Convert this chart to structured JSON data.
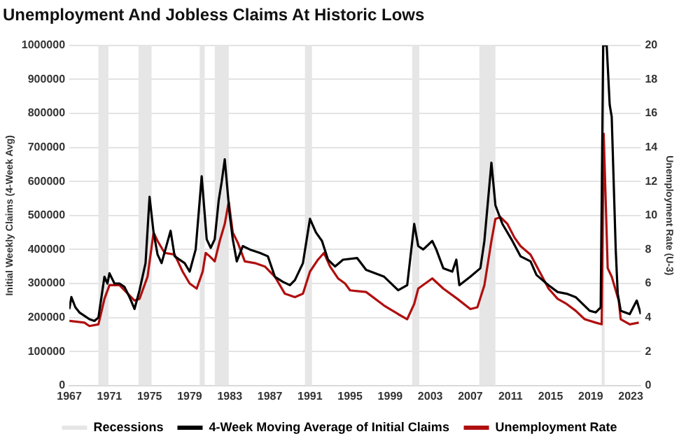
{
  "chart_data": {
    "type": "line",
    "title": "Unemployment And Jobless Claims At Historic Lows",
    "ylabel": "Initial Weekly Claims (4-Week Avg)",
    "y2label": "Unemployment Rate (U-3)",
    "xlim": [
      1967,
      2024
    ],
    "xticks": [
      1967,
      1971,
      1975,
      1979,
      1983,
      1987,
      1991,
      1995,
      1999,
      2003,
      2007,
      2011,
      2015,
      2019,
      2023
    ],
    "ylim": [
      0,
      1000000
    ],
    "yticks": [
      0,
      100000,
      200000,
      300000,
      400000,
      500000,
      600000,
      700000,
      800000,
      900000,
      1000000
    ],
    "y2lim": [
      0,
      20
    ],
    "y2ticks": [
      0,
      2,
      4,
      6,
      8,
      10,
      12,
      14,
      16,
      18,
      20
    ],
    "grid": "y",
    "legend": "bottom",
    "marker": "none",
    "line_style": "solid",
    "bands": [
      {
        "axis": "x",
        "from": 1969.9,
        "to": 1970.9,
        "label": "Recessions",
        "color": "#e6e6e6"
      },
      {
        "axis": "x",
        "from": 1973.9,
        "to": 1975.2,
        "color": "#e6e6e6"
      },
      {
        "axis": "x",
        "from": 1980.0,
        "to": 1980.5,
        "color": "#e6e6e6"
      },
      {
        "axis": "x",
        "from": 1981.5,
        "to": 1982.9,
        "color": "#e6e6e6"
      },
      {
        "axis": "x",
        "from": 1990.5,
        "to": 1991.2,
        "color": "#e6e6e6"
      },
      {
        "axis": "x",
        "from": 2001.2,
        "to": 2001.9,
        "color": "#e6e6e6"
      },
      {
        "axis": "x",
        "from": 2007.9,
        "to": 2009.5,
        "color": "#e6e6e6"
      },
      {
        "axis": "x",
        "from": 2020.1,
        "to": 2020.4,
        "color": "#e6e6e6"
      }
    ],
    "series": [
      {
        "name": "4-Week Moving Average of Initial Claims",
        "color": "#000000",
        "x": [
          1967.0,
          1967.2,
          1967.6,
          1968.0,
          1968.5,
          1969.0,
          1969.5,
          1969.9,
          1970.2,
          1970.5,
          1970.8,
          1971.0,
          1971.5,
          1972.0,
          1972.5,
          1973.0,
          1973.5,
          1974.0,
          1974.6,
          1975.0,
          1975.4,
          1975.8,
          1976.2,
          1977.1,
          1977.5,
          1978.5,
          1979.0,
          1979.6,
          1980.2,
          1980.7,
          1981.1,
          1981.5,
          1981.9,
          1982.2,
          1982.5,
          1983.0,
          1983.3,
          1983.7,
          1984.3,
          1985.0,
          1986.0,
          1986.8,
          1987.5,
          1988.3,
          1989.0,
          1989.5,
          1990.3,
          1991.0,
          1991.6,
          1992.2,
          1992.8,
          1993.5,
          1994.3,
          1995.7,
          1996.6,
          1998.4,
          1999.8,
          2000.7,
          2001.4,
          2001.8,
          2002.3,
          2003.2,
          2003.6,
          2004.3,
          2005.2,
          2005.6,
          2005.9,
          2007.0,
          2008.0,
          2008.4,
          2009.1,
          2009.5,
          2010.2,
          2011.1,
          2012.0,
          2013.0,
          2013.6,
          2014.8,
          2015.7,
          2016.6,
          2017.5,
          2018.9,
          2019.5,
          2020.0,
          2020.25,
          2020.6,
          2020.9,
          2021.1,
          2021.5,
          2021.7,
          2022.0,
          2022.9,
          2023.6,
          2024.0
        ],
        "values": [
          225000,
          260000,
          230000,
          215000,
          205000,
          195000,
          190000,
          200000,
          260000,
          320000,
          300000,
          330000,
          300000,
          300000,
          290000,
          260000,
          225000,
          280000,
          360000,
          555000,
          450000,
          385000,
          360000,
          455000,
          380000,
          360000,
          335000,
          400000,
          615000,
          430000,
          405000,
          430000,
          545000,
          600000,
          665000,
          500000,
          430000,
          365000,
          410000,
          400000,
          390000,
          380000,
          320000,
          305000,
          295000,
          310000,
          360000,
          490000,
          450000,
          425000,
          370000,
          350000,
          370000,
          375000,
          340000,
          320000,
          280000,
          295000,
          475000,
          410000,
          400000,
          425000,
          400000,
          345000,
          335000,
          370000,
          295000,
          320000,
          345000,
          425000,
          655000,
          530000,
          475000,
          430000,
          380000,
          365000,
          325000,
          295000,
          275000,
          270000,
          260000,
          220000,
          215000,
          230000,
          1000000,
          1000000,
          825000,
          790000,
          400000,
          270000,
          220000,
          210000,
          250000,
          210000
        ]
      },
      {
        "name": "Unemployment Rate",
        "color": "#b00f0f",
        "axis": "y2",
        "x": [
          1967.0,
          1968.5,
          1969.0,
          1969.9,
          1970.5,
          1971.0,
          1972.0,
          1973.5,
          1974.0,
          1974.8,
          1975.4,
          1975.8,
          1976.5,
          1977.5,
          1978.3,
          1979.0,
          1979.7,
          1980.3,
          1980.6,
          1981.0,
          1981.5,
          1982.0,
          1982.5,
          1982.9,
          1983.3,
          1983.8,
          1984.5,
          1985.5,
          1986.5,
          1987.5,
          1988.5,
          1989.5,
          1990.3,
          1991.0,
          1991.8,
          1992.4,
          1993.0,
          1993.8,
          1994.5,
          1995.0,
          1996.6,
          1998.4,
          1999.8,
          2000.7,
          2001.4,
          2001.8,
          2003.2,
          2004.3,
          2005.7,
          2007.0,
          2007.7,
          2008.4,
          2009.1,
          2009.5,
          2010.0,
          2010.7,
          2011.4,
          2012.0,
          2013.0,
          2013.9,
          2014.8,
          2015.7,
          2016.6,
          2017.5,
          2018.4,
          2019.5,
          2020.1,
          2020.3,
          2020.7,
          2021.1,
          2021.8,
          2022.0,
          2022.9,
          2023.8
        ],
        "values": [
          3.8,
          3.7,
          3.5,
          3.6,
          5.1,
          5.9,
          5.9,
          5.0,
          5.1,
          6.4,
          9.0,
          8.5,
          7.8,
          7.7,
          6.7,
          6.0,
          5.7,
          6.7,
          7.8,
          7.6,
          7.3,
          8.5,
          9.5,
          10.8,
          9.0,
          8.4,
          7.3,
          7.2,
          7.0,
          6.4,
          5.4,
          5.2,
          5.4,
          6.7,
          7.4,
          7.8,
          7.0,
          6.3,
          6.0,
          5.6,
          5.5,
          4.7,
          4.2,
          3.9,
          4.8,
          5.7,
          6.3,
          5.7,
          5.1,
          4.5,
          4.6,
          5.9,
          8.5,
          9.8,
          9.9,
          9.5,
          8.7,
          8.2,
          7.7,
          6.7,
          5.7,
          5.1,
          4.8,
          4.4,
          3.9,
          3.7,
          3.6,
          14.8,
          6.9,
          6.4,
          5.0,
          3.9,
          3.6,
          3.7
        ]
      }
    ]
  }
}
